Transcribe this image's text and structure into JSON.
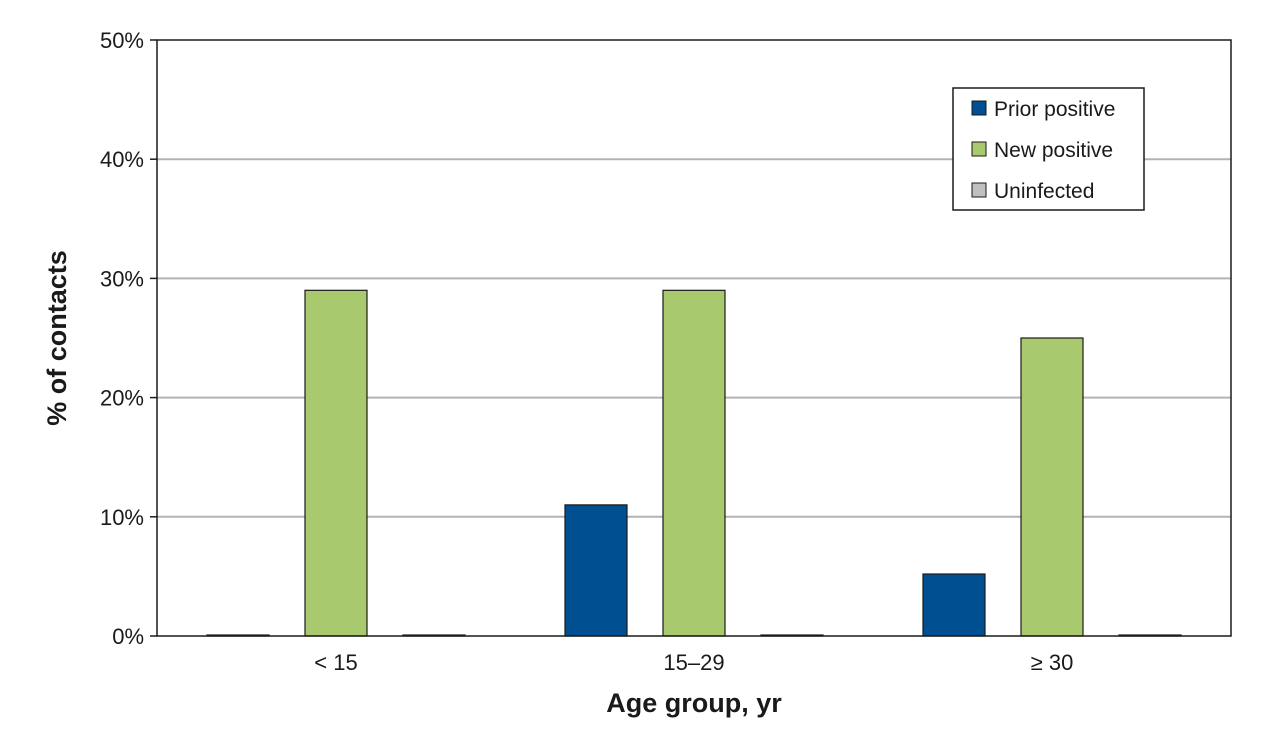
{
  "chart_data": {
    "type": "bar",
    "categories": [
      "< 15",
      "15–29",
      "≥ 30"
    ],
    "series": [
      {
        "name": "Prior positive",
        "values": [
          0,
          11,
          5.2
        ],
        "color": "#004f91"
      },
      {
        "name": "New positive",
        "values": [
          29,
          29,
          25
        ],
        "color": "#a9c96e"
      },
      {
        "name": "Uninfected",
        "values": [
          0,
          0,
          0
        ],
        "color": "#c0c0c0"
      }
    ],
    "title": "",
    "xlabel": "Age group, yr",
    "ylabel": "% of contacts",
    "ylim": [
      0,
      50
    ],
    "yticks": [
      0,
      10,
      20,
      30,
      40,
      50
    ],
    "ytick_labels": [
      "0%",
      "10%",
      "20%",
      "30%",
      "40%",
      "50%"
    ],
    "grid": true,
    "legend_position": "top-right"
  }
}
